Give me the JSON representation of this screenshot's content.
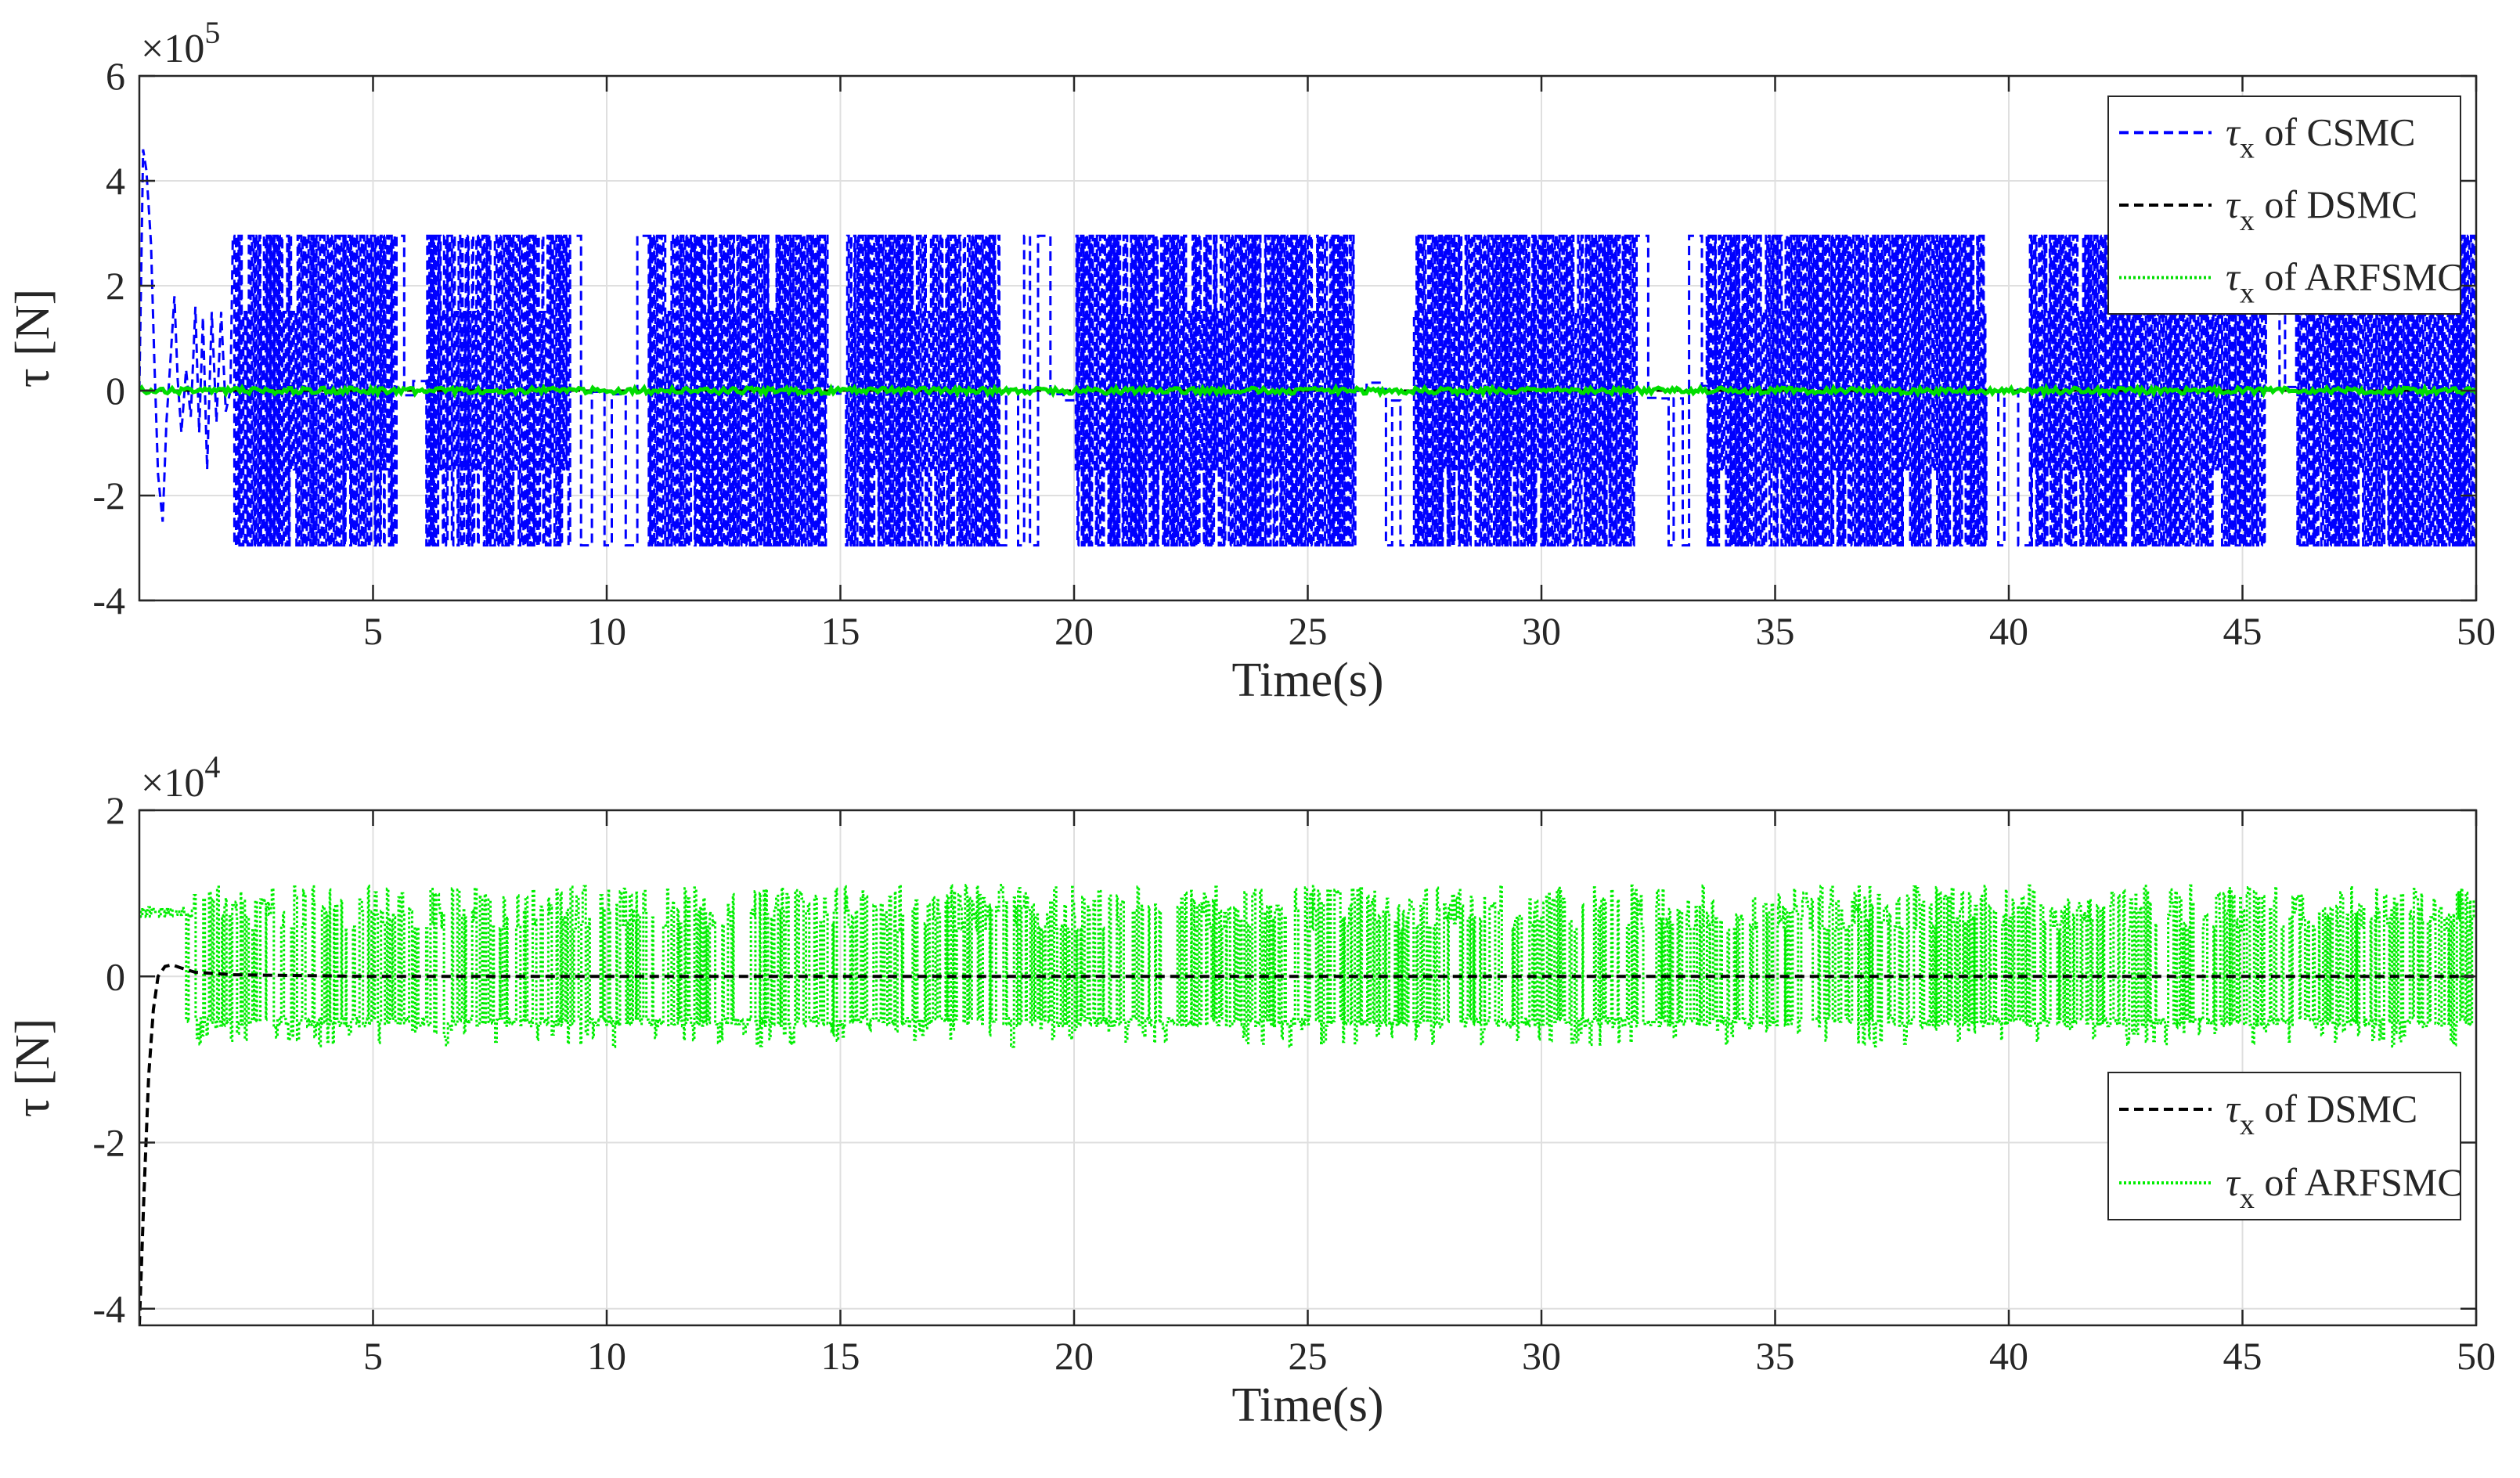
{
  "chart_data": [
    {
      "type": "line",
      "xlabel": "Time(s)",
      "ylabel": "τ [N]",
      "exponent_label": "×10",
      "exponent_power": "5",
      "xlim": [
        0,
        50
      ],
      "ylim": [
        -4,
        6
      ],
      "x_ticks": [
        5,
        10,
        15,
        20,
        25,
        30,
        35,
        40,
        45,
        50
      ],
      "x_tick_labels": [
        "5",
        "10",
        "15",
        "20",
        "25",
        "30",
        "35",
        "40",
        "45",
        "50"
      ],
      "y_ticks": [
        -4,
        -2,
        0,
        2,
        4,
        6
      ],
      "y_tick_labels": [
        "-4",
        "-2",
        "0",
        "2",
        "4",
        "6"
      ],
      "grid": true,
      "legend_placement": "top-right",
      "series": [
        {
          "name": "τx of CSMC",
          "legend_symbol": "τ",
          "legend_sub": "x",
          "legend_rest": " of CSMC",
          "color": "#0000ff",
          "line_style": "dashed",
          "transient": [
            [
              0.0,
              0.0
            ],
            [
              0.08,
              4.6
            ],
            [
              0.15,
              4.2
            ],
            [
              0.25,
              2.8
            ],
            [
              0.32,
              0.6
            ],
            [
              0.4,
              -1.6
            ],
            [
              0.5,
              -2.5
            ],
            [
              0.58,
              -0.6
            ],
            [
              0.66,
              0.5
            ],
            [
              0.75,
              1.8
            ],
            [
              0.82,
              0.2
            ],
            [
              0.9,
              -0.8
            ],
            [
              1.0,
              0.4
            ],
            [
              1.1,
              -0.5
            ],
            [
              1.2,
              1.6
            ],
            [
              1.28,
              -0.8
            ],
            [
              1.36,
              1.4
            ],
            [
              1.45,
              -1.5
            ],
            [
              1.55,
              1.5
            ],
            [
              1.65,
              -0.6
            ],
            [
              1.75,
              1.5
            ],
            [
              1.85,
              -0.4
            ],
            [
              1.95,
              0.0
            ]
          ],
          "switching_start_s": 2.0,
          "switching_amplitude": 2.95,
          "partial_amplitude": 1.5,
          "quiet_intervals_s": [
            [
              5.5,
              6.0
            ],
            [
              9.2,
              10.9
            ],
            [
              14.7,
              15.1
            ],
            [
              18.4,
              19.8
            ],
            [
              26.0,
              27.0
            ],
            [
              32.0,
              33.5
            ],
            [
              39.5,
              40.3
            ],
            [
              45.5,
              46.0
            ]
          ]
        },
        {
          "name": "τx of DSMC",
          "legend_symbol": "τ",
          "legend_sub": "x",
          "legend_rest": " of DSMC",
          "color": "#000000",
          "line_style": "dashed",
          "points": [
            [
              0.0,
              0.0
            ],
            [
              50.0,
              0.0
            ]
          ]
        },
        {
          "name": "τx of ARFSMC",
          "legend_symbol": "τ",
          "legend_sub": "x",
          "legend_rest": " of ARFSMC",
          "color": "#00dd00",
          "line_style": "dotted",
          "noise_amplitude": 0.06,
          "points": [
            [
              0.0,
              0.0
            ],
            [
              50.0,
              0.0
            ]
          ]
        }
      ]
    },
    {
      "type": "line",
      "xlabel": "Time(s)",
      "ylabel": "τ [N]",
      "exponent_label": "×10",
      "exponent_power": "4",
      "xlim": [
        0,
        50
      ],
      "ylim": [
        -4.2,
        2
      ],
      "x_ticks": [
        5,
        10,
        15,
        20,
        25,
        30,
        35,
        40,
        45,
        50
      ],
      "x_tick_labels": [
        "5",
        "10",
        "15",
        "20",
        "25",
        "30",
        "35",
        "40",
        "45",
        "50"
      ],
      "y_ticks": [
        -4,
        -2,
        0,
        2
      ],
      "y_tick_labels": [
        "-4",
        "-2",
        "0",
        "2"
      ],
      "grid": true,
      "legend_placement": "bottom-right",
      "series": [
        {
          "name": "τx of DSMC",
          "legend_symbol": "τ",
          "legend_sub": "x",
          "legend_rest": " of DSMC",
          "color": "#000000",
          "line_style": "dashed",
          "points": [
            [
              0.0,
              -4.2
            ],
            [
              0.1,
              -2.6
            ],
            [
              0.2,
              -1.2
            ],
            [
              0.3,
              -0.4
            ],
            [
              0.4,
              0.0
            ],
            [
              0.55,
              0.12
            ],
            [
              0.7,
              0.14
            ],
            [
              0.9,
              0.1
            ],
            [
              1.2,
              0.05
            ],
            [
              2.0,
              0.02
            ],
            [
              5.0,
              0.0
            ],
            [
              10.0,
              0.0
            ],
            [
              20.0,
              0.0
            ],
            [
              30.0,
              0.0
            ],
            [
              40.0,
              0.0
            ],
            [
              50.0,
              0.0
            ]
          ]
        },
        {
          "name": "τx of ARFSMC",
          "legend_symbol": "τ",
          "legend_sub": "x",
          "legend_rest": " of ARFSMC",
          "color": "#00ee00",
          "line_style": "dotted",
          "high_level": 0.75,
          "mid_level": 0.55,
          "low_level": -0.55,
          "peak_max": 1.1,
          "trough_min": -0.85
        }
      ]
    }
  ]
}
